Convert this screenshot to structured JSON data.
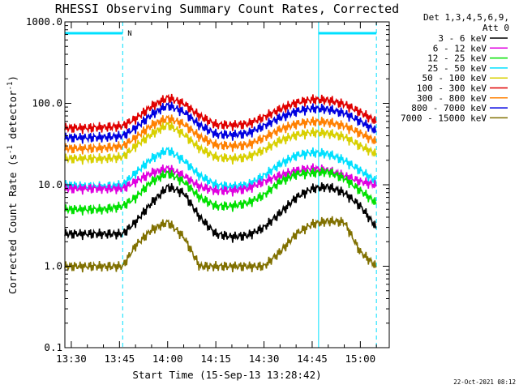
{
  "chart_data": {
    "type": "line",
    "title": "RHESSI Observing Summary Count Rates, Corrected",
    "xlabel": "Start Time (15-Sep-13 13:28:42)",
    "ylabel": "Corrected Count Rate (s⁻¹ detector⁻¹)",
    "ylabel_parts": {
      "prefix": "Corrected Count Rate (s",
      "sup1": "-1",
      "middle": " detector",
      "sup2": "-1",
      "suffix": ")"
    },
    "y_scale": "log",
    "ylim": [
      0.1,
      1000.0
    ],
    "yticks": [
      {
        "value": 0.1,
        "label": "0.1"
      },
      {
        "value": 1.0,
        "label": "1.0"
      },
      {
        "value": 10.0,
        "label": "10.0"
      },
      {
        "value": 100.0,
        "label": "100.0"
      },
      {
        "value": 1000.0,
        "label": "1000.0"
      }
    ],
    "xlim": [
      "13:28",
      "15:09"
    ],
    "xticks": [
      "13:30",
      "13:45",
      "14:00",
      "14:15",
      "14:30",
      "14:45",
      "15:00"
    ],
    "legend_header": [
      "Det 1,3,4,5,6,9,",
      "Att 0"
    ],
    "footer": "22-Oct-2021 08:12",
    "annotations": {
      "night_label": "N",
      "night_bars": [
        [
          "13:28",
          "13:46"
        ],
        [
          "14:47",
          "15:05"
        ]
      ],
      "orbit_lines_dashed": [
        "13:46",
        "15:05"
      ],
      "orbit_lines_solid": [
        "13:28",
        "14:47"
      ]
    },
    "x": [
      "13:28",
      "13:35",
      "13:40",
      "13:46",
      "13:50",
      "13:55",
      "14:00",
      "14:05",
      "14:10",
      "14:15",
      "14:20",
      "14:25",
      "14:30",
      "14:35",
      "14:40",
      "14:45",
      "14:50",
      "14:55",
      "15:00",
      "15:05"
    ],
    "series": [
      {
        "name": "3 - 6 keV",
        "color": "#000000",
        "values": [
          2.5,
          2.5,
          2.5,
          2.5,
          3.5,
          6.0,
          9.5,
          8.0,
          4.0,
          2.5,
          2.3,
          2.4,
          3.0,
          4.5,
          7.0,
          9.0,
          9.5,
          8.0,
          5.5,
          3.0
        ]
      },
      {
        "name": "6 - 12 keV",
        "color": "#e000e0",
        "values": [
          9.0,
          9.0,
          9.0,
          9.0,
          11.0,
          14.0,
          16.0,
          13.0,
          9.5,
          8.5,
          8.5,
          9.0,
          11.0,
          13.0,
          15.0,
          16.0,
          15.0,
          13.0,
          11.0,
          10.0
        ]
      },
      {
        "name": "12 - 25 keV",
        "color": "#00e000",
        "values": [
          5.0,
          5.0,
          5.0,
          5.5,
          7.0,
          11.0,
          14.0,
          11.0,
          7.0,
          5.5,
          5.5,
          6.0,
          7.5,
          11.0,
          13.5,
          14.0,
          14.5,
          12.0,
          8.5,
          6.0
        ]
      },
      {
        "name": "25 - 50 keV",
        "color": "#00e0ff",
        "values": [
          10.0,
          9.5,
          9.5,
          10.0,
          14.0,
          21.0,
          27.0,
          20.0,
          13.0,
          10.0,
          9.5,
          10.0,
          13.0,
          18.0,
          23.0,
          25.0,
          24.0,
          20.0,
          15.0,
          11.0
        ]
      },
      {
        "name": "50 - 100 keV",
        "color": "#d8d000",
        "values": [
          21.0,
          21.0,
          21.0,
          22.0,
          30.0,
          42.0,
          55.0,
          42.0,
          28.0,
          22.0,
          21.0,
          22.0,
          27.0,
          35.0,
          41.0,
          44.0,
          43.0,
          39.0,
          30.0,
          24.0
        ]
      },
      {
        "name": "100 - 300 keV",
        "color": "#e00000",
        "values": [
          50.0,
          50.0,
          51.0,
          53.0,
          65.0,
          92.0,
          118.0,
          100.0,
          70.0,
          55.0,
          54.0,
          56.0,
          68.0,
          85.0,
          102.0,
          112.0,
          110.0,
          98.0,
          78.0,
          60.0
        ]
      },
      {
        "name": "300 - 800 keV",
        "color": "#ff8000",
        "values": [
          28.0,
          28.0,
          28.5,
          30.0,
          38.0,
          54.0,
          66.0,
          56.0,
          39.0,
          31.0,
          30.0,
          31.0,
          38.0,
          48.0,
          56.0,
          60.0,
          59.0,
          53.0,
          43.0,
          34.0
        ]
      },
      {
        "name": "800 - 7000 keV",
        "color": "#0000e0",
        "values": [
          38.0,
          38.0,
          38.5,
          40.0,
          50.0,
          73.0,
          95.0,
          79.0,
          54.0,
          42.0,
          41.0,
          43.0,
          53.0,
          67.0,
          80.0,
          87.0,
          85.0,
          76.0,
          60.0,
          46.0
        ]
      },
      {
        "name": "7000 - 15000 keV",
        "color": "#807000",
        "values": [
          1.0,
          1.0,
          1.0,
          1.0,
          1.8,
          2.8,
          3.5,
          2.3,
          1.0,
          1.0,
          1.0,
          1.0,
          1.0,
          1.5,
          2.5,
          3.3,
          3.6,
          3.5,
          1.5,
          1.0
        ]
      }
    ]
  }
}
